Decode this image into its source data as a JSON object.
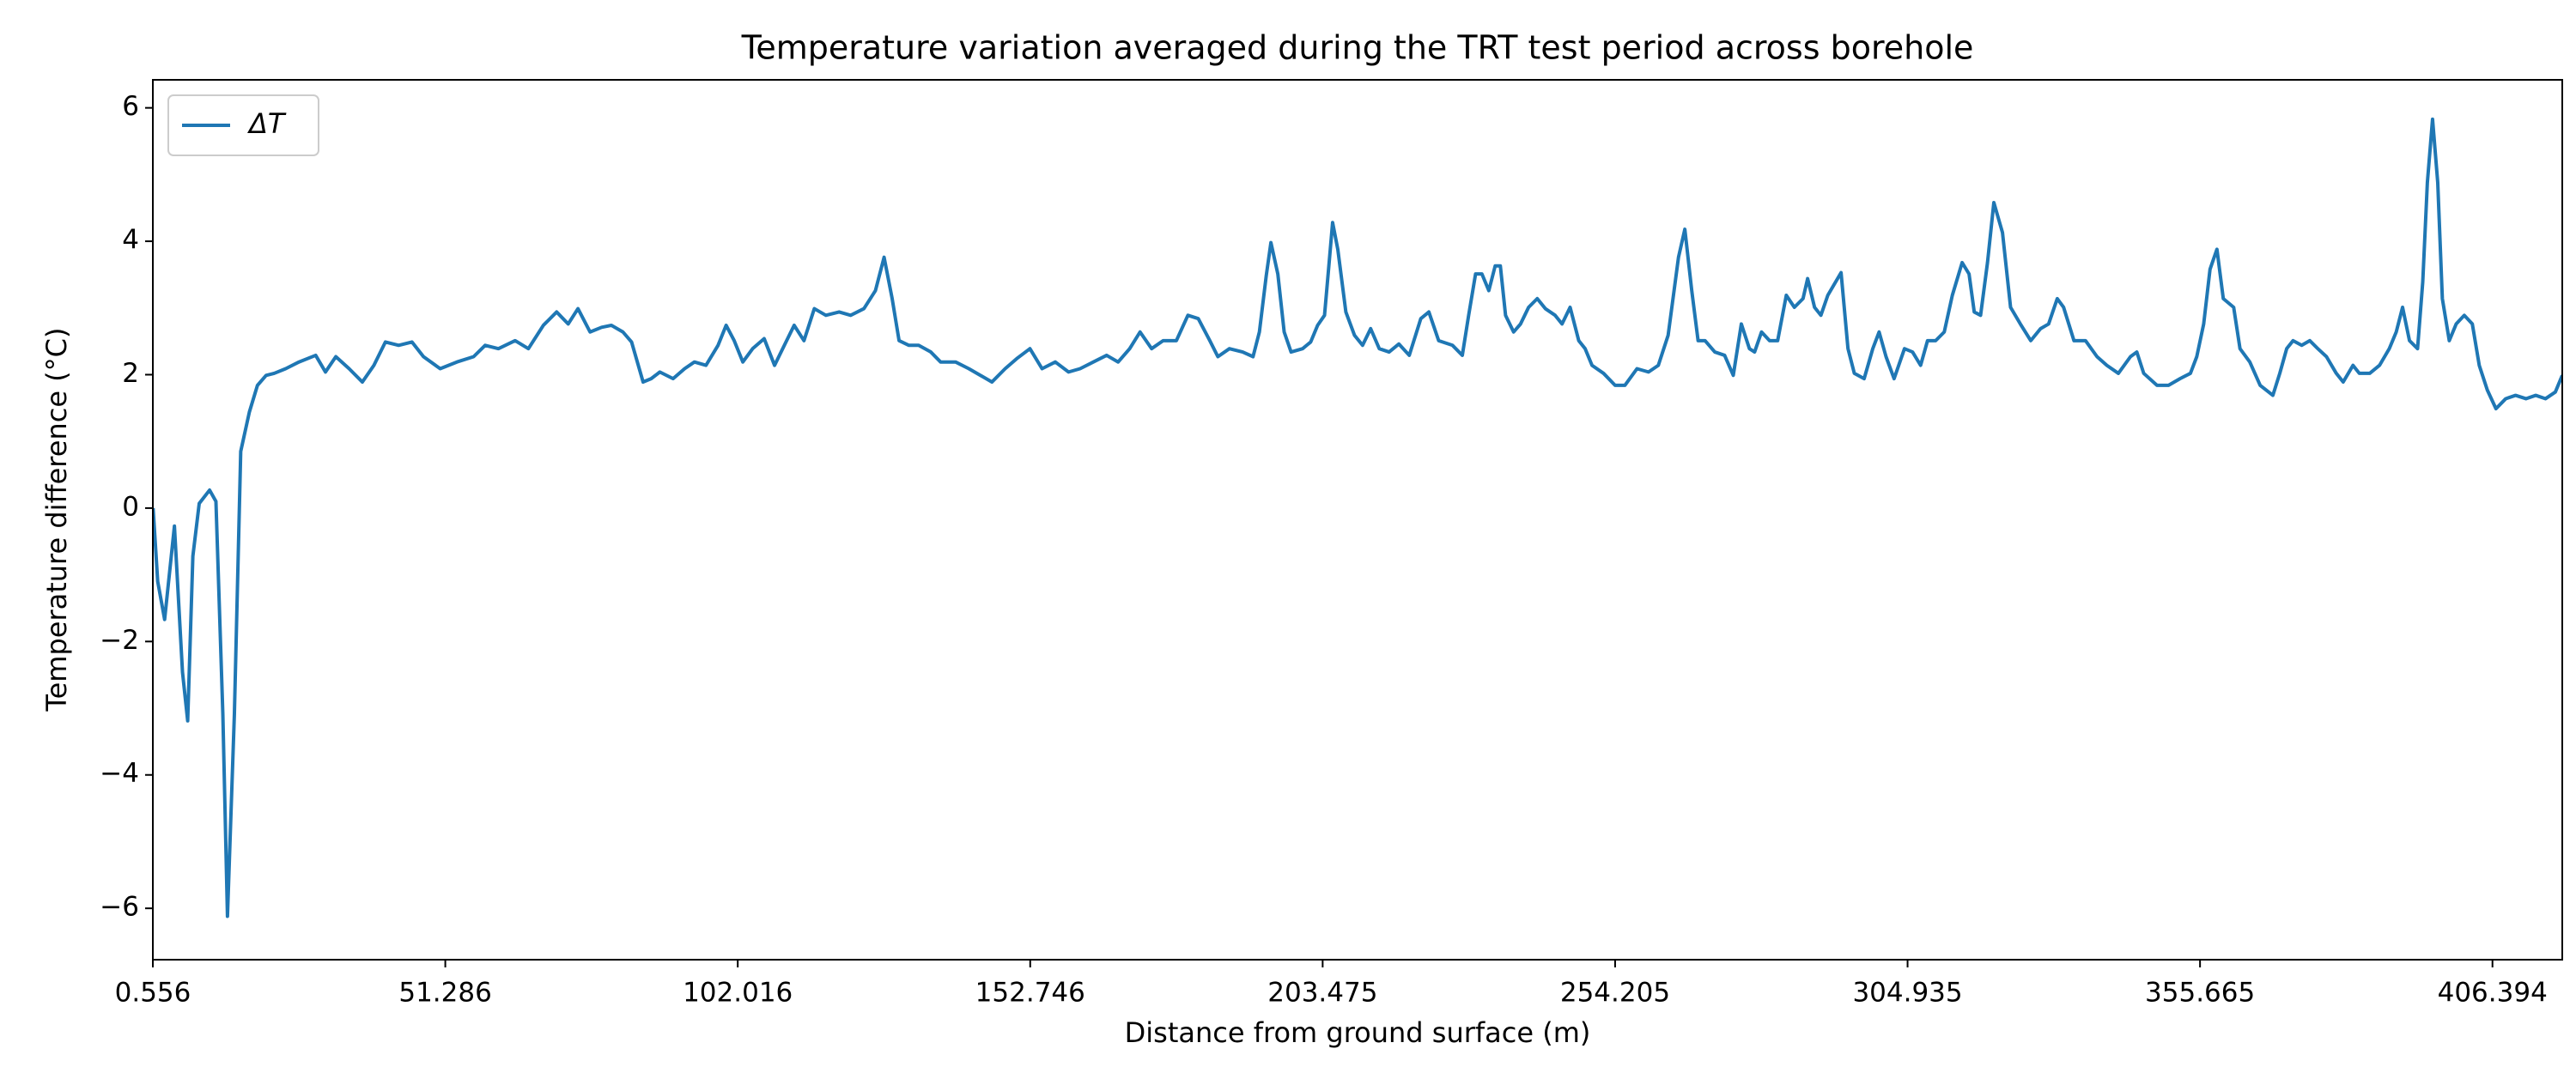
{
  "chart_data": {
    "type": "line",
    "title": "Temperature variation averaged during the TRT test period across borehole",
    "x_label": "Distance from ground surface (m)",
    "y_label": "Temperature difference (°C)",
    "xlim": [
      0.556,
      418.5
    ],
    "ylim": [
      -6.77,
      6.42
    ],
    "xticks": [
      0.556,
      51.286,
      102.016,
      152.746,
      203.475,
      254.205,
      304.935,
      355.665,
      406.394
    ],
    "yticks": [
      {
        "value": -6,
        "label": "−6"
      },
      {
        "value": -4,
        "label": "−4"
      },
      {
        "value": -2,
        "label": "−2"
      },
      0,
      2,
      4,
      6
    ],
    "grid": false,
    "legend": "upper left",
    "x": [
      0.6,
      1.4,
      2.6,
      4.3,
      5.7,
      6.6,
      7.5,
      8.6,
      10.4,
      11.5,
      12.7,
      13.5,
      14.7,
      15.8,
      17.3,
      18.7,
      20.2,
      21.6,
      23.6,
      25.9,
      28.8,
      30.5,
      32.3,
      34.6,
      36.9,
      38.9,
      40.9,
      43.2,
      45.5,
      47.5,
      50.4,
      53.3,
      56.2,
      58.2,
      60.5,
      63.4,
      65.7,
      68.3,
      70.6,
      72.6,
      74.3,
      76.4,
      78.4,
      80.1,
      82.1,
      83.6,
      85.6,
      87.0,
      88.5,
      90.8,
      92.8,
      94.5,
      96.5,
      98.6,
      100.0,
      101.4,
      102.9,
      104.6,
      106.6,
      108.4,
      110.1,
      111.8,
      113.5,
      115.3,
      117.3,
      119.6,
      121.6,
      123.9,
      125.9,
      127.4,
      128.8,
      130.0,
      131.7,
      133.4,
      135.5,
      137.2,
      139.8,
      142.1,
      144.1,
      146.1,
      148.4,
      150.4,
      152.7,
      154.8,
      157.1,
      159.4,
      161.4,
      163.7,
      166.0,
      168.0,
      170.0,
      171.8,
      173.8,
      175.8,
      178.1,
      180.1,
      181.9,
      183.9,
      185.3,
      187.3,
      189.6,
      191.4,
      192.5,
      193.7,
      194.5,
      195.7,
      196.8,
      198.0,
      200.0,
      201.4,
      202.6,
      203.8,
      204.6,
      205.2,
      206.1,
      207.5,
      209.0,
      210.4,
      211.8,
      213.3,
      215.0,
      216.7,
      218.5,
      220.5,
      221.9,
      223.6,
      226.0,
      227.7,
      228.8,
      230.0,
      231.1,
      232.3,
      233.4,
      234.3,
      235.2,
      236.6,
      237.8,
      239.2,
      240.7,
      242.1,
      243.8,
      245.0,
      246.4,
      247.9,
      249.0,
      250.2,
      252.2,
      254.2,
      255.9,
      258.0,
      260.0,
      261.7,
      263.4,
      265.2,
      266.3,
      267.5,
      268.6,
      269.8,
      271.5,
      273.2,
      274.7,
      276.1,
      277.5,
      278.4,
      279.6,
      281.0,
      282.4,
      283.9,
      285.3,
      286.8,
      287.6,
      288.8,
      289.9,
      291.1,
      293.4,
      294.6,
      295.7,
      297.4,
      298.9,
      300.0,
      301.2,
      302.6,
      304.4,
      305.8,
      307.2,
      308.4,
      309.8,
      311.3,
      312.7,
      314.4,
      315.6,
      316.5,
      317.6,
      318.8,
      319.9,
      321.4,
      322.8,
      324.5,
      326.3,
      328.0,
      329.4,
      330.9,
      332.0,
      333.8,
      335.8,
      337.8,
      339.5,
      341.5,
      343.6,
      344.7,
      345.9,
      348.2,
      350.2,
      352.2,
      354.0,
      355.1,
      356.3,
      357.4,
      358.6,
      359.7,
      361.5,
      362.6,
      364.3,
      366.1,
      368.3,
      369.5,
      370.7,
      371.8,
      373.3,
      374.7,
      376.1,
      377.6,
      379.3,
      380.5,
      382.2,
      383.3,
      385.1,
      386.8,
      388.5,
      389.7,
      390.8,
      392.0,
      393.4,
      394.3,
      395.1,
      396.0,
      396.9,
      397.7,
      398.9,
      400.1,
      401.5,
      402.9,
      404.1,
      405.5,
      407.0,
      408.7,
      410.4,
      412.2,
      413.9,
      415.6,
      417.3,
      418.5
    ],
    "series": [
      {
        "name": "ΔT",
        "color": "#1f77b4",
        "values": [
          0,
          -1.1,
          -1.67,
          -0.27,
          -2.46,
          -3.19,
          -0.72,
          0.07,
          0.27,
          0.1,
          -3.09,
          -6.12,
          -3.09,
          0.85,
          1.44,
          1.84,
          1.99,
          2.02,
          2.09,
          2.19,
          2.29,
          2.04,
          2.27,
          2.09,
          1.89,
          2.14,
          2.49,
          2.44,
          2.49,
          2.27,
          2.09,
          2.19,
          2.27,
          2.44,
          2.39,
          2.51,
          2.39,
          2.74,
          2.94,
          2.76,
          2.99,
          2.64,
          2.71,
          2.74,
          2.64,
          2.49,
          1.89,
          1.94,
          2.04,
          1.94,
          2.09,
          2.19,
          2.14,
          2.44,
          2.74,
          2.51,
          2.19,
          2.39,
          2.54,
          2.14,
          2.44,
          2.74,
          2.51,
          2.99,
          2.89,
          2.94,
          2.89,
          2.99,
          3.26,
          3.76,
          3.14,
          2.51,
          2.44,
          2.44,
          2.34,
          2.19,
          2.19,
          2.09,
          1.99,
          1.89,
          2.09,
          2.24,
          2.39,
          2.09,
          2.19,
          2.04,
          2.09,
          2.19,
          2.29,
          2.19,
          2.39,
          2.64,
          2.39,
          2.51,
          2.51,
          2.89,
          2.84,
          2.51,
          2.27,
          2.39,
          2.34,
          2.27,
          2.64,
          3.49,
          3.98,
          3.51,
          2.64,
          2.34,
          2.39,
          2.49,
          2.74,
          2.89,
          3.68,
          4.28,
          3.88,
          2.94,
          2.59,
          2.44,
          2.69,
          2.39,
          2.34,
          2.46,
          2.29,
          2.84,
          2.94,
          2.51,
          2.44,
          2.29,
          2.89,
          3.51,
          3.51,
          3.26,
          3.63,
          3.63,
          2.89,
          2.64,
          2.76,
          3.01,
          3.14,
          2.99,
          2.89,
          2.76,
          3.01,
          2.51,
          2.39,
          2.14,
          2.02,
          1.84,
          1.84,
          2.09,
          2.04,
          2.14,
          2.59,
          3.76,
          4.18,
          3.26,
          2.51,
          2.51,
          2.34,
          2.29,
          1.99,
          2.76,
          2.39,
          2.34,
          2.64,
          2.51,
          2.51,
          3.19,
          3.01,
          3.14,
          3.44,
          3.01,
          2.89,
          3.19,
          3.53,
          2.39,
          2.02,
          1.94,
          2.39,
          2.64,
          2.27,
          1.94,
          2.39,
          2.34,
          2.14,
          2.51,
          2.51,
          2.64,
          3.19,
          3.68,
          3.51,
          2.94,
          2.89,
          3.68,
          4.58,
          4.13,
          3.01,
          2.76,
          2.51,
          2.69,
          2.76,
          3.14,
          3.01,
          2.51,
          2.51,
          2.27,
          2.14,
          2.02,
          2.27,
          2.34,
          2.02,
          1.84,
          1.84,
          1.94,
          2.02,
          2.27,
          2.76,
          3.58,
          3.88,
          3.14,
          3.01,
          2.39,
          2.19,
          1.84,
          1.69,
          2.02,
          2.39,
          2.51,
          2.44,
          2.51,
          2.39,
          2.27,
          2.02,
          1.89,
          2.14,
          2.02,
          2.02,
          2.14,
          2.39,
          2.64,
          3.01,
          2.51,
          2.39,
          3.39,
          4.88,
          5.83,
          4.88,
          3.14,
          2.51,
          2.76,
          2.89,
          2.76,
          2.14,
          1.77,
          1.49,
          1.64,
          1.69,
          1.64,
          1.69,
          1.64,
          1.74,
          1.99
        ]
      }
    ]
  }
}
